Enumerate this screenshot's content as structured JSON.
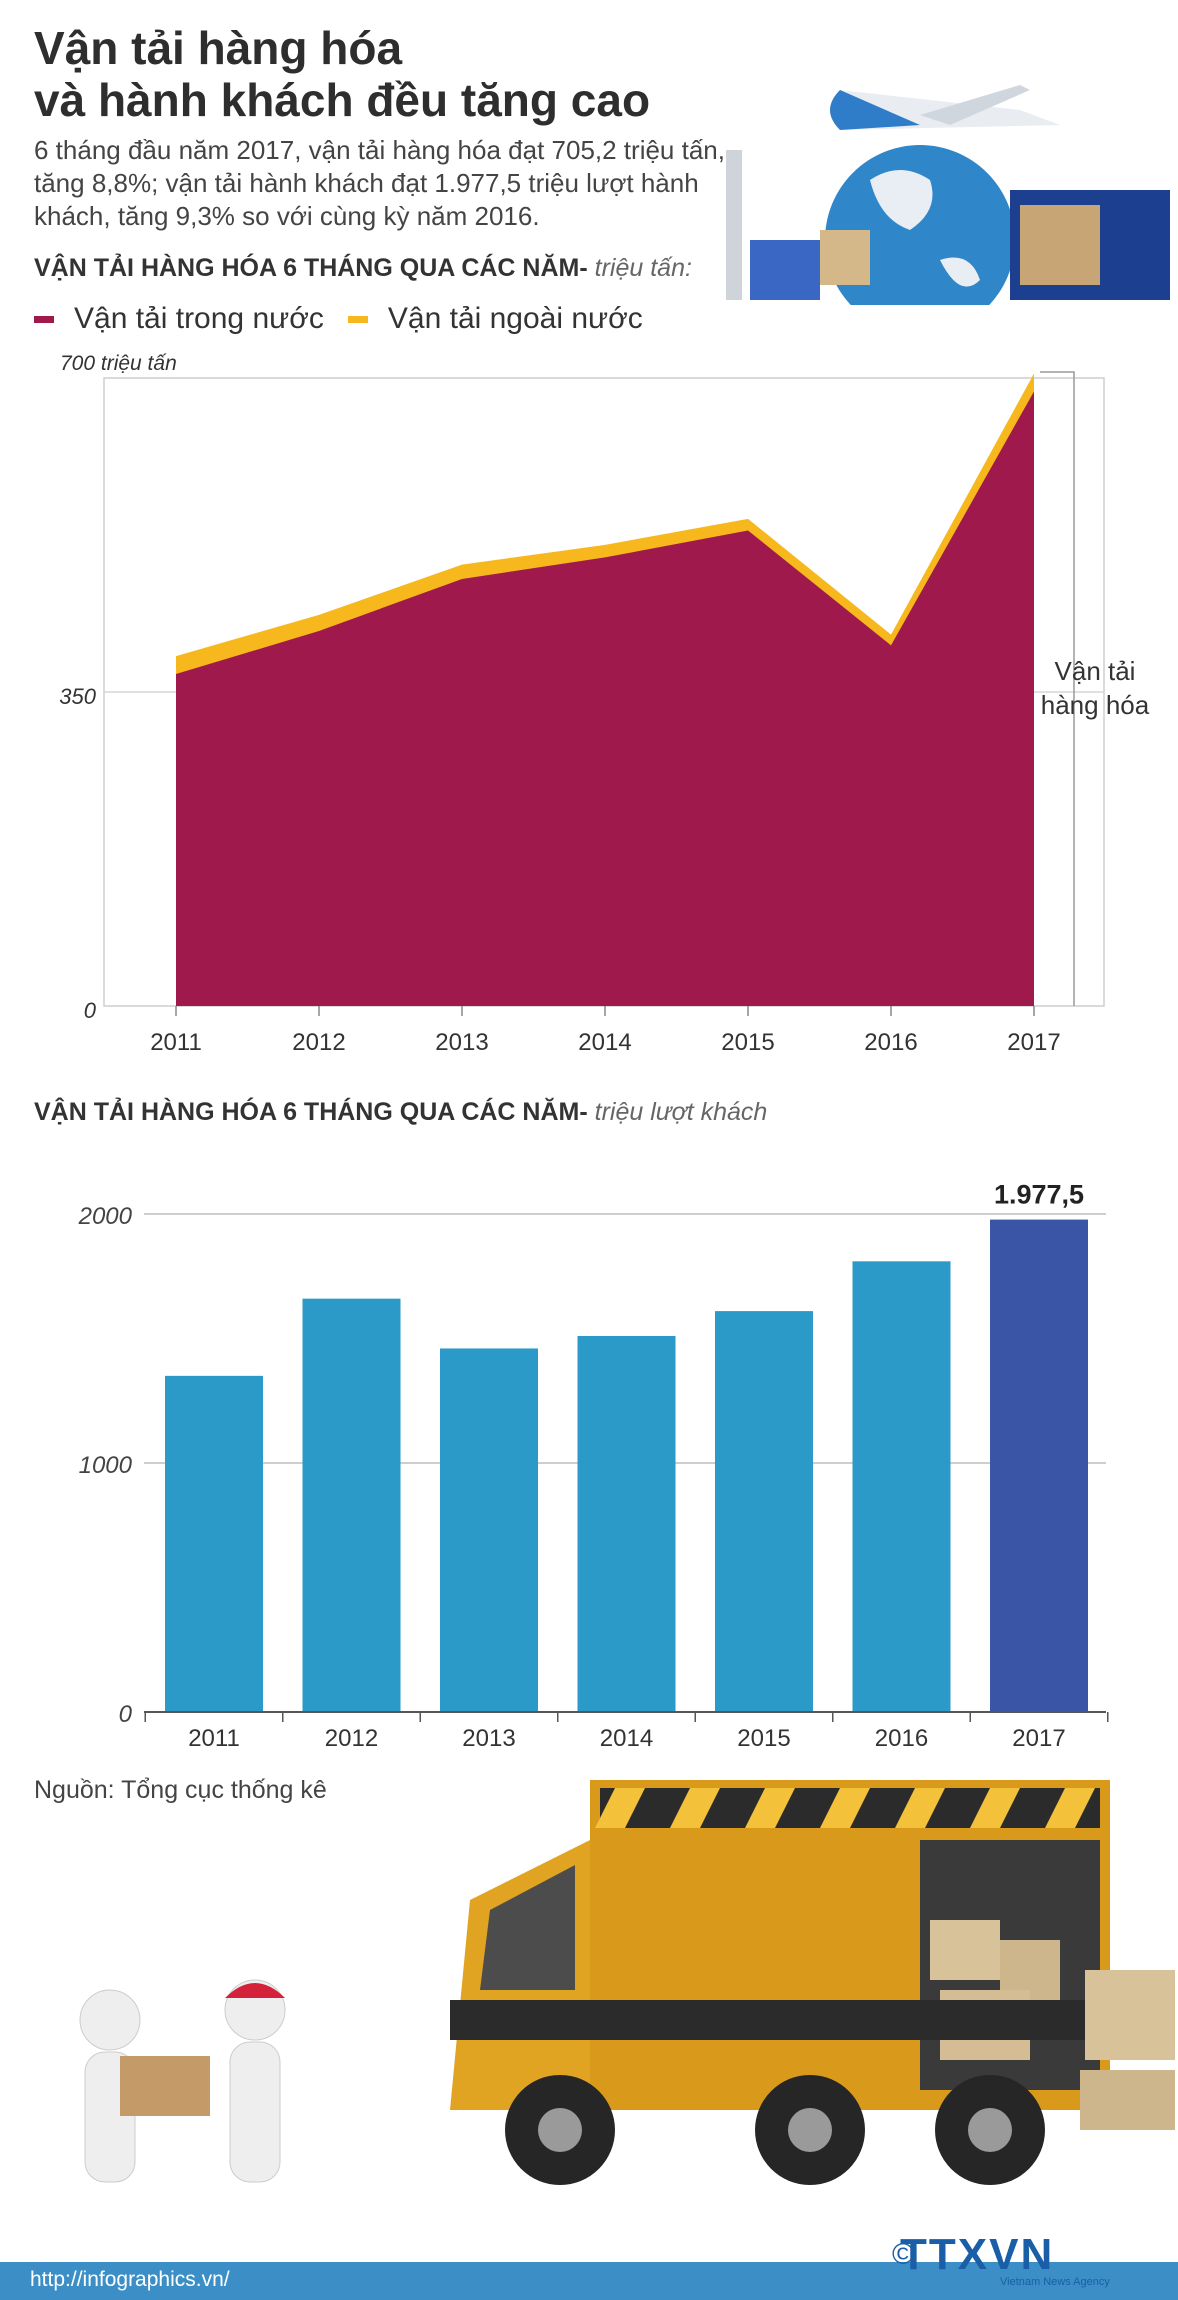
{
  "header": {
    "title_line1": "Vận tải hàng hóa",
    "title_line2": "và hành khách đều tăng cao",
    "intro": "6 tháng đầu năm 2017, vận tải hàng hóa đạt 705,2 triệu tấn, tăng 8,8%; vận tải hành khách đạt 1.977,5 triệu lượt hành khách, tăng 9,3% so với cùng kỳ năm 2016."
  },
  "cargo": {
    "section_title": "VẬN TẢI HÀNG HÓA  6 THÁNG QUA CÁC NĂM-",
    "section_unit": "triệu tấn:",
    "legend": [
      {
        "label": "Vận tải trong nước",
        "color": "#a0194d"
      },
      {
        "label": "Vận tải ngoài nước",
        "color": "#f6b81c"
      }
    ],
    "side_label_line1": "Vận tải",
    "side_label_line2": "hàng hóa"
  },
  "passenger": {
    "section_title": "VẬN TẢI HÀNG HÓA  6 THÁNG QUA CÁC NĂM-",
    "section_unit": "triệu lượt khách",
    "value_label": "1.977,5"
  },
  "source": "Nguồn: Tổng cục thống kê",
  "footer": {
    "url": "http://infographics.vn/",
    "brand": "TTXVN",
    "brand_sub": "Vietnam News Agency",
    "copyright": "©"
  },
  "chart_data": [
    {
      "type": "area",
      "x": [
        "2011",
        "2012",
        "2013",
        "2014",
        "2015",
        "2016",
        "2017"
      ],
      "series": [
        {
          "name": "Vận tải trong nước",
          "color": "#a0194d",
          "values": [
            370,
            418,
            476,
            500,
            530,
            402,
            685
          ]
        },
        {
          "name": "Vận tải ngoài nước",
          "color": "#f6b81c",
          "values": [
            20,
            18,
            16,
            14,
            13,
            12,
            20
          ]
        }
      ],
      "y_ticks": [
        {
          "value": 0,
          "label": "0"
        },
        {
          "value": 350,
          "label": "350"
        },
        {
          "value": 700,
          "label": "700 triệu tấn"
        }
      ],
      "ylim": [
        0,
        700
      ],
      "grid": true
    },
    {
      "type": "bar",
      "categories": [
        "2011",
        "2012",
        "2013",
        "2014",
        "2015",
        "2016",
        "2017"
      ],
      "values": [
        1350,
        1660,
        1460,
        1510,
        1610,
        1810,
        1977.5
      ],
      "colors": [
        "#2b9ac9",
        "#2b9ac9",
        "#2b9ac9",
        "#2b9ac9",
        "#2b9ac9",
        "#2b9ac9",
        "#3b55a6"
      ],
      "y_ticks": [
        {
          "value": 0,
          "label": "0"
        },
        {
          "value": 1000,
          "label": "1000"
        },
        {
          "value": 2000,
          "label": "2000"
        }
      ],
      "ylim": [
        0,
        2000
      ],
      "grid": true
    }
  ]
}
